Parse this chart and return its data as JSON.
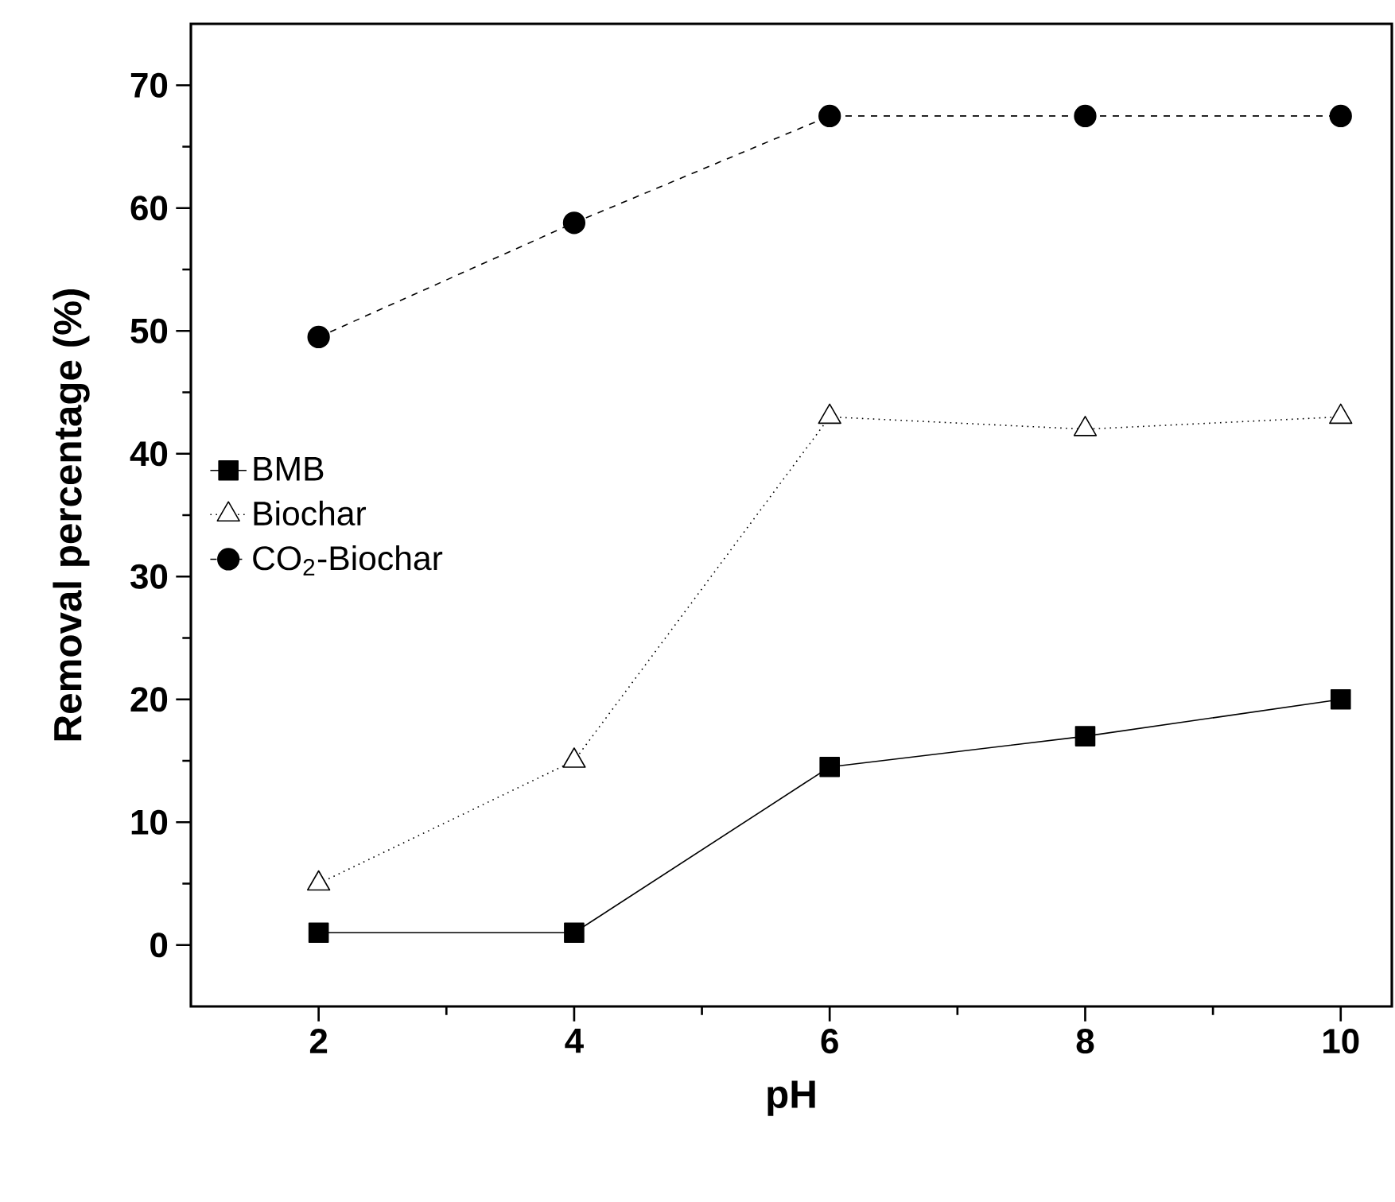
{
  "chart_data": {
    "type": "line",
    "xlabel": "pH",
    "ylabel": "Removal percentage (%)",
    "x": [
      2,
      4,
      6,
      8,
      10
    ],
    "series": [
      {
        "name": "BMB",
        "color": "#000000",
        "values": [
          1,
          1,
          14.5,
          17,
          20
        ],
        "marker": "square",
        "line_style": "solid"
      },
      {
        "name": "Biochar",
        "color": "#000000",
        "values": [
          5,
          15,
          43,
          42,
          43
        ],
        "marker": "triangle",
        "line_style": "dotted"
      },
      {
        "name": "CO$_{2}$-Biochar",
        "color": "#000000",
        "values": [
          49.5,
          58.8,
          67.5,
          67.5,
          67.5
        ],
        "marker": "circle",
        "line_style": "dashed"
      }
    ],
    "xlim": [
      1,
      10.4
    ],
    "ylim": [
      -5,
      75
    ],
    "xticks": [
      2,
      4,
      6,
      8,
      10
    ],
    "yticks": [
      0,
      10,
      20,
      30,
      40,
      50,
      60,
      70
    ],
    "grid": false,
    "legend": "left"
  }
}
